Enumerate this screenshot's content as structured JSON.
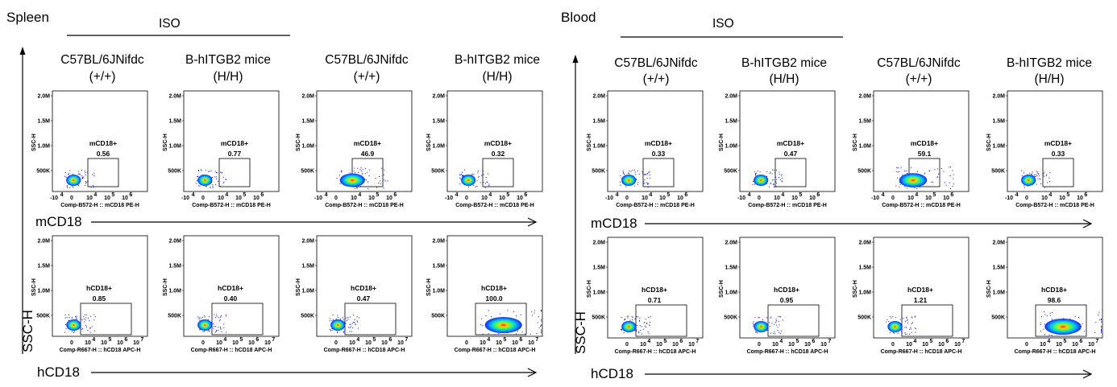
{
  "sections": [
    {
      "title": "Spleen",
      "group": "ISO",
      "side_label_y": "SSC-H",
      "row_labels": [
        "mCD18",
        "hCD18"
      ]
    },
    {
      "title": "Blood",
      "group": "ISO",
      "side_label_y": "SSC-H",
      "row_labels": [
        "mCD18",
        "hCD18"
      ]
    }
  ],
  "column_headers": [
    {
      "line1": "C57BL/6JNifdc",
      "line2": "(+/+)"
    },
    {
      "line1": "B-hITGB2 mice",
      "line2": "(H/H)"
    },
    {
      "line1": "C57BL/6JNifdc",
      "line2": "(+/+)"
    },
    {
      "line1": "B-hITGB2 mice",
      "line2": "(H/H)"
    }
  ],
  "axes": {
    "y_label": "SSC-H",
    "y_ticks": [
      "2.0M",
      "1.5M",
      "1.0M",
      "500K"
    ],
    "mcd18_x_label": "Comp-B572-H :: mCD18 PE-H",
    "hcd18_x_label": "Comp-R667-H :: hCD18 APC-H",
    "mcd18_x_ticks": [
      {
        "base": "-10",
        "exp": "4"
      },
      {
        "base": "0",
        "exp": ""
      },
      {
        "base": "10",
        "exp": "4"
      },
      {
        "base": "10",
        "exp": "5"
      },
      {
        "base": "10",
        "exp": "6"
      }
    ],
    "hcd18_x_ticks": [
      {
        "base": "0",
        "exp": ""
      },
      {
        "base": "10",
        "exp": "4"
      },
      {
        "base": "10",
        "exp": "5"
      },
      {
        "base": "10",
        "exp": "6"
      },
      {
        "base": "10",
        "exp": "7"
      }
    ]
  },
  "chart_data": [
    {
      "type": "scatter",
      "section": "Spleen",
      "row": "mCD18",
      "column": "C57BL/6JNifdc (+/+)",
      "gate_label": "mCD18+",
      "gate_value": "0.56"
    },
    {
      "type": "scatter",
      "section": "Spleen",
      "row": "mCD18",
      "column": "B-hITGB2 mice (H/H)",
      "gate_label": "mCD18+",
      "gate_value": "0.77"
    },
    {
      "type": "scatter",
      "section": "Spleen",
      "row": "mCD18",
      "column": "C57BL/6JNifdc (+/+)",
      "gate_label": "mCD18+",
      "gate_value": "46.9"
    },
    {
      "type": "scatter",
      "section": "Spleen",
      "row": "mCD18",
      "column": "B-hITGB2 mice (H/H)",
      "gate_label": "mCD18+",
      "gate_value": "0.32"
    },
    {
      "type": "scatter",
      "section": "Spleen",
      "row": "hCD18",
      "column": "C57BL/6JNifdc (+/+)",
      "gate_label": "hCD18+",
      "gate_value": "0.85"
    },
    {
      "type": "scatter",
      "section": "Spleen",
      "row": "hCD18",
      "column": "B-hITGB2 mice (H/H)",
      "gate_label": "hCD18+",
      "gate_value": "0.40"
    },
    {
      "type": "scatter",
      "section": "Spleen",
      "row": "hCD18",
      "column": "C57BL/6JNifdc (+/+)",
      "gate_label": "hCD18+",
      "gate_value": "0.47"
    },
    {
      "type": "scatter",
      "section": "Spleen",
      "row": "hCD18",
      "column": "B-hITGB2 mice (H/H)",
      "gate_label": "hCD18+",
      "gate_value": "100.0"
    },
    {
      "type": "scatter",
      "section": "Blood",
      "row": "mCD18",
      "column": "C57BL/6JNifdc (+/+)",
      "gate_label": "mCD18+",
      "gate_value": "0.33"
    },
    {
      "type": "scatter",
      "section": "Blood",
      "row": "mCD18",
      "column": "B-hITGB2 mice (H/H)",
      "gate_label": "mCD18+",
      "gate_value": "0.47"
    },
    {
      "type": "scatter",
      "section": "Blood",
      "row": "mCD18",
      "column": "C57BL/6JNifdc (+/+)",
      "gate_label": "mCD18+",
      "gate_value": "59.1"
    },
    {
      "type": "scatter",
      "section": "Blood",
      "row": "mCD18",
      "column": "B-hITGB2 mice (H/H)",
      "gate_label": "mCD18+",
      "gate_value": "0.33"
    },
    {
      "type": "scatter",
      "section": "Blood",
      "row": "hCD18",
      "column": "C57BL/6JNifdc (+/+)",
      "gate_label": "hCD18+",
      "gate_value": "0.71"
    },
    {
      "type": "scatter",
      "section": "Blood",
      "row": "hCD18",
      "column": "B-hITGB2 mice (H/H)",
      "gate_label": "hCD18+",
      "gate_value": "0.95"
    },
    {
      "type": "scatter",
      "section": "Blood",
      "row": "hCD18",
      "column": "C57BL/6JNifdc (+/+)",
      "gate_label": "hCD18+",
      "gate_value": "1.21"
    },
    {
      "type": "scatter",
      "section": "Blood",
      "row": "hCD18",
      "column": "B-hITGB2 mice (H/H)",
      "gate_label": "hCD18+",
      "gate_value": "98.6"
    }
  ],
  "colors": {
    "density_low": "#0000ff",
    "density_mid": "#00ff66",
    "density_high": "#ff2200",
    "ink": "#000000"
  }
}
